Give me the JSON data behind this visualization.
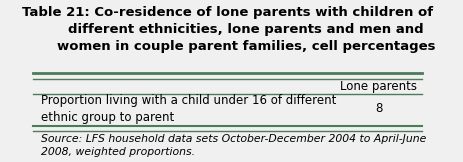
{
  "title": "Table 21: Co-residence of lone parents with children of\n        different ethnicities, lone parents and men and\n        women in couple parent families, cell percentages",
  "col_header": "Lone parents",
  "row_label": "Proportion living with a child under 16 of different\nethnic group to parent",
  "row_value": "8",
  "source_text": "Source: LFS household data sets October-December 2004 to April-June\n2008, weighted proportions.",
  "bg_color": "#f0f0f0",
  "border_color": "#4a7c59",
  "title_fontsize": 9.5,
  "body_fontsize": 8.5,
  "source_fontsize": 7.8
}
